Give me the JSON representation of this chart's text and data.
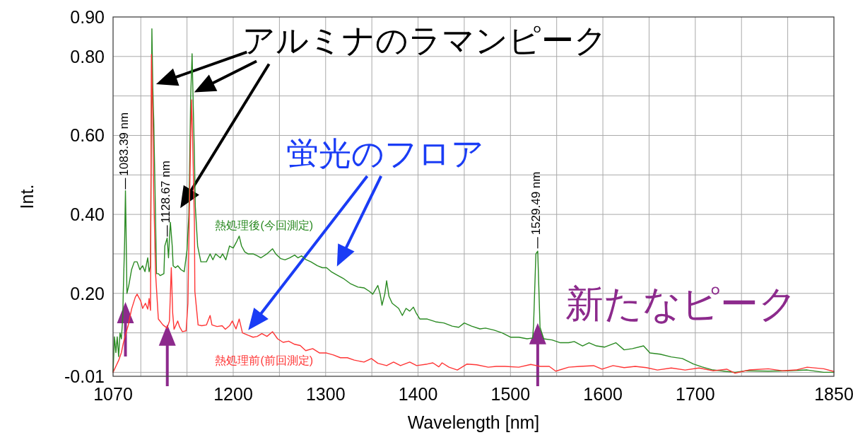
{
  "chart_data": {
    "type": "line",
    "xlabel": "Wavelength [nm]",
    "ylabel": "Int.",
    "xlim": [
      1070,
      1850
    ],
    "ylim": [
      -0.01,
      0.9
    ],
    "xticks": [
      1070,
      {
        "value": 1100,
        "label": null
      },
      {
        "value": 1150,
        "label": null
      },
      1200,
      {
        "value": 1250,
        "label": null
      },
      1300,
      {
        "value": 1350,
        "label": null
      },
      1400,
      {
        "value": 1450,
        "label": null
      },
      1500,
      {
        "value": 1550,
        "label": null
      },
      1600,
      {
        "value": 1650,
        "label": null
      },
      1700,
      {
        "value": 1750,
        "label": null
      },
      {
        "value": 1800,
        "label": null
      },
      1850
    ],
    "yticks": [
      -0.01,
      {
        "value": 0.0,
        "label": null
      },
      {
        "value": 0.1,
        "label": null
      },
      {
        "value": 0.2,
        "label": "0.20"
      },
      {
        "value": 0.3,
        "label": null
      },
      {
        "value": 0.4,
        "label": "0.40"
      },
      {
        "value": 0.5,
        "label": null
      },
      {
        "value": 0.6,
        "label": "0.60"
      },
      {
        "value": 0.7,
        "label": null
      },
      {
        "value": 0.8,
        "label": "0.80"
      },
      {
        "value": 0.9,
        "label": "0.90"
      }
    ],
    "grid": true,
    "annotations": [
      {
        "text": "アルミナのラマンピーク",
        "x": 1112,
        "y": 0.73
      },
      "蛍光のフロア",
      "新たなピーク",
      {
        "text": "1083.39 nm",
        "x": 1083.39,
        "y": 0.46
      },
      {
        "text": "1128.67 nm",
        "x": 1128.67,
        "y": 0.34
      },
      {
        "text": "1529.49 nm",
        "x": 1529.49,
        "y": 0.31
      }
    ],
    "series": [
      {
        "name": "熱処理後(今回測定)",
        "color": "#2a8a22",
        "x": [
          1070,
          1071.5,
          1073,
          1074.5,
          1076,
          1077.5,
          1079,
          1080.5,
          1081,
          1082.5,
          1083.4,
          1084,
          1085,
          1087,
          1090,
          1093,
          1096,
          1099,
          1102,
          1104.5,
          1107.5,
          1109,
          1110.5,
          1112,
          1113,
          1114,
          1115.5,
          1117,
          1119,
          1121,
          1125,
          1126,
          1128.5,
          1130,
          1131.5,
          1132,
          1134,
          1135,
          1137.5,
          1140,
          1143.5,
          1147,
          1150,
          1152,
          1153,
          1154,
          1155.5,
          1156.5,
          1158,
          1159,
          1161.5,
          1165,
          1171,
          1175,
          1178,
          1181,
          1186,
          1188.5,
          1192,
          1196,
          1200,
          1203.5,
          1206.5,
          1209,
          1212.5,
          1216,
          1221.5,
          1226,
          1230,
          1236.5,
          1242.5,
          1246,
          1251.5,
          1256,
          1261,
          1266.5,
          1270,
          1274,
          1278.5,
          1284,
          1291,
          1296.5,
          1301,
          1306,
          1312,
          1319,
          1326.5,
          1335,
          1341.5,
          1347.5,
          1351,
          1356.5,
          1359,
          1361,
          1364,
          1366,
          1368.5,
          1372,
          1379,
          1383,
          1387,
          1391,
          1395,
          1398,
          1402,
          1410,
          1419,
          1428,
          1437,
          1444,
          1450,
          1458,
          1467,
          1473,
          1482,
          1491,
          1500,
          1509,
          1518,
          1524,
          1525,
          1527.5,
          1529.5,
          1530.5,
          1532,
          1536,
          1545,
          1554,
          1563,
          1569,
          1578,
          1585,
          1593,
          1602,
          1614,
          1623,
          1632,
          1644,
          1651,
          1662,
          1674,
          1686,
          1698,
          1707,
          1719,
          1731,
          1743,
          1755,
          1779,
          1800,
          1821,
          1839,
          1850
        ],
        "values": [
          0.0,
          0.09,
          0.05,
          0.09,
          0.04,
          0.1,
          0.085,
          0.14,
          0.2,
          0.33,
          0.46,
          0.37,
          0.2,
          0.22,
          0.26,
          0.28,
          0.28,
          0.26,
          0.27,
          0.255,
          0.29,
          0.255,
          0.27,
          0.87,
          0.72,
          0.64,
          0.45,
          0.25,
          0.25,
          0.245,
          0.25,
          0.32,
          0.34,
          0.29,
          0.36,
          0.38,
          0.32,
          0.27,
          0.265,
          0.27,
          0.26,
          0.255,
          0.31,
          0.4,
          0.55,
          0.7,
          0.807,
          0.7,
          0.55,
          0.42,
          0.32,
          0.28,
          0.28,
          0.3,
          0.285,
          0.3,
          0.29,
          0.3,
          0.285,
          0.32,
          0.315,
          0.33,
          0.345,
          0.32,
          0.305,
          0.3,
          0.3,
          0.295,
          0.29,
          0.3,
          0.313,
          0.3,
          0.288,
          0.285,
          0.29,
          0.297,
          0.29,
          0.295,
          0.286,
          0.28,
          0.27,
          0.265,
          0.265,
          0.255,
          0.247,
          0.238,
          0.225,
          0.216,
          0.214,
          0.205,
          0.198,
          0.22,
          0.198,
          0.17,
          0.198,
          0.232,
          0.193,
          0.175,
          0.162,
          0.144,
          0.162,
          0.155,
          0.165,
          0.15,
          0.135,
          0.135,
          0.128,
          0.125,
          0.117,
          0.114,
          0.125,
          0.117,
          0.11,
          0.112,
          0.107,
          0.1,
          0.089,
          0.089,
          0.085,
          0.087,
          0.12,
          0.3,
          0.307,
          0.23,
          0.114,
          0.085,
          0.082,
          0.075,
          0.075,
          0.078,
          0.067,
          0.075,
          0.067,
          0.064,
          0.075,
          0.057,
          0.06,
          0.067,
          0.049,
          0.046,
          0.039,
          0.035,
          0.021,
          0.014,
          0.006,
          0.003,
          0.0,
          0.004,
          0.003,
          0.004,
          0.006,
          0.0,
          0.0
        ]
      },
      {
        "name": "熱処理前(前回測定)",
        "color": "#ff3535",
        "x": [
          1070,
          1073,
          1076,
          1079,
          1081,
          1084,
          1086.5,
          1090,
          1094,
          1096,
          1100,
          1102,
          1105,
          1107.5,
          1109,
          1110.5,
          1111.5,
          1113,
          1114,
          1116,
          1119,
          1124,
          1128.5,
          1131,
          1133,
          1134.5,
          1136,
          1140,
          1142,
          1145,
          1149,
          1151,
          1152.5,
          1154,
          1155,
          1156,
          1158,
          1158.5,
          1162,
          1166,
          1171,
          1175,
          1177,
          1182.5,
          1188,
          1191.5,
          1196,
          1199,
          1203,
          1206.5,
          1210,
          1216,
          1221.5,
          1226,
          1231,
          1236.5,
          1242.5,
          1248,
          1254,
          1260,
          1266.5,
          1272.5,
          1278.5,
          1286,
          1293.5,
          1301,
          1308.5,
          1316,
          1323.5,
          1331,
          1341.5,
          1349.5,
          1356.5,
          1366,
          1373.5,
          1381,
          1391,
          1398.5,
          1410,
          1416,
          1422.5,
          1426,
          1433.5,
          1442.5,
          1453,
          1463.5,
          1476,
          1484.5,
          1494,
          1509,
          1522,
          1532.5,
          1542,
          1549,
          1563,
          1575,
          1590,
          1599,
          1611,
          1623,
          1635,
          1647,
          1659,
          1674,
          1689,
          1704,
          1719,
          1734,
          1743,
          1758,
          1779,
          1794,
          1809,
          1821,
          1839,
          1850
        ],
        "values": [
          0.0,
          0.015,
          0.03,
          0.05,
          0.073,
          0.1,
          0.12,
          0.16,
          0.19,
          0.198,
          0.18,
          0.162,
          0.175,
          0.16,
          0.187,
          0.157,
          0.805,
          0.64,
          0.45,
          0.25,
          0.135,
          0.12,
          0.112,
          0.13,
          0.265,
          0.15,
          0.109,
          0.13,
          0.115,
          0.103,
          0.105,
          0.175,
          0.4,
          0.6,
          0.69,
          0.6,
          0.38,
          0.205,
          0.12,
          0.118,
          0.12,
          0.144,
          0.12,
          0.116,
          0.118,
          0.109,
          0.118,
          0.13,
          0.11,
          0.135,
          0.1,
          0.094,
          0.089,
          0.091,
          0.098,
          0.091,
          0.103,
          0.085,
          0.076,
          0.079,
          0.071,
          0.068,
          0.055,
          0.06,
          0.049,
          0.049,
          0.044,
          0.037,
          0.037,
          0.031,
          0.026,
          0.035,
          0.023,
          0.017,
          0.026,
          0.017,
          0.026,
          0.017,
          0.021,
          0.024,
          0.014,
          0.024,
          0.013,
          0.006,
          0.021,
          0.019,
          0.013,
          0.015,
          0.015,
          0.013,
          0.02,
          0.015,
          0.015,
          0.003,
          0.013,
          0.015,
          0.017,
          0.008,
          0.017,
          0.012,
          0.015,
          0.012,
          0.006,
          0.011,
          0.006,
          0.011,
          0.004,
          0.008,
          -0.002,
          0.006,
          0.009,
          0.004,
          0.006,
          0.013,
          0.009,
          0.002
        ]
      }
    ]
  }
}
